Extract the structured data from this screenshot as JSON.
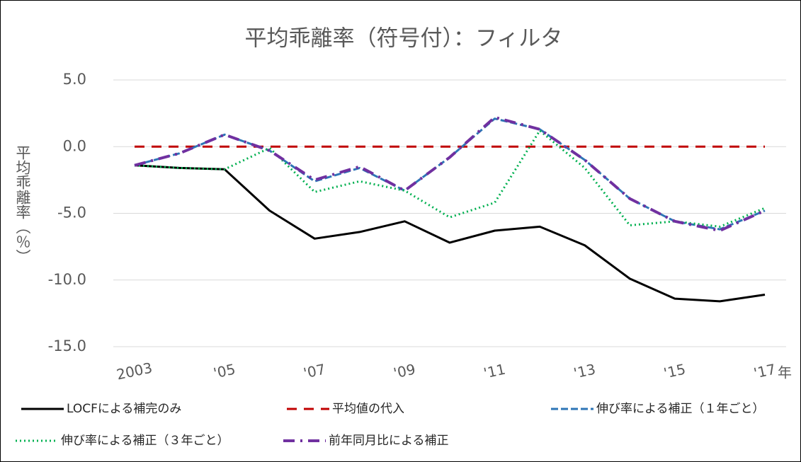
{
  "chart_data": {
    "type": "line",
    "title": "平均乖離率（符号付）：フィルタ",
    "y_label": "平均乖離率（％）",
    "x_label": "年",
    "categories": [
      "2003",
      null,
      "'05",
      null,
      "'07",
      null,
      "'09",
      null,
      "'11",
      null,
      "'13",
      null,
      "'15",
      null,
      "'17"
    ],
    "ylim": [
      -15,
      5
    ],
    "yticks": [
      {
        "value": 5,
        "label": "5.0"
      },
      {
        "value": 0,
        "label": "0.0"
      },
      {
        "value": -5,
        "label": "-5.0"
      },
      {
        "value": -10,
        "label": "-10.0"
      },
      {
        "value": -15,
        "label": "-15.0"
      }
    ],
    "grid": true,
    "legend": "bottom",
    "series": [
      {
        "name": "LOCFによる補完のみ",
        "color": "#000000",
        "dash": "solid",
        "values": [
          -1.4,
          -1.6,
          -1.7,
          -4.8,
          -6.9,
          -6.4,
          -5.6,
          -7.2,
          -6.3,
          -6.0,
          -7.4,
          -9.9,
          -11.4,
          -11.6,
          -11.1
        ]
      },
      {
        "name": "平均値の代入",
        "color": "#c00000",
        "dash": "longdash",
        "values": [
          0,
          0,
          0,
          0,
          0,
          0,
          0,
          0,
          0,
          0,
          0,
          0,
          0,
          0,
          0
        ]
      },
      {
        "name": "伸び率による補正（１年ごと）",
        "color": "#2e75b6",
        "dash": "dash",
        "values": [
          -1.4,
          -0.5,
          0.9,
          -0.3,
          -2.6,
          -1.6,
          -3.3,
          -0.8,
          2.1,
          1.3,
          -1.0,
          -3.9,
          -5.6,
          -6.2,
          -4.8
        ]
      },
      {
        "name": "伸び率による補正（３年ごと）",
        "color": "#00b050",
        "dash": "dot",
        "values": [
          -1.4,
          -1.6,
          -1.7,
          -0.1,
          -3.4,
          -2.6,
          -3.3,
          -5.3,
          -4.2,
          1.2,
          -1.6,
          -5.9,
          -5.6,
          -6.0,
          -4.6
        ]
      },
      {
        "name": "前年同月比による補正",
        "color": "#7030a0",
        "dash": "dashdot",
        "values": [
          -1.4,
          -0.5,
          0.9,
          -0.3,
          -2.5,
          -1.5,
          -3.3,
          -0.8,
          2.2,
          1.3,
          -1.0,
          -3.9,
          -5.6,
          -6.3,
          -4.8
        ]
      }
    ]
  }
}
